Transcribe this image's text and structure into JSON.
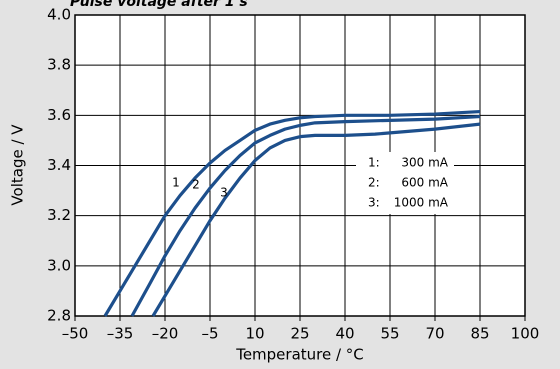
{
  "chart_data": {
    "type": "line",
    "title": "Pulse voltage after 1 s",
    "xlabel": "Temperature / °C",
    "ylabel": "Voltage / V",
    "xlim": [
      -50,
      100
    ],
    "xticks": [
      {
        "value": -50,
        "label": "–50"
      },
      {
        "value": -35,
        "label": "–35"
      },
      {
        "value": -20,
        "label": "–20"
      },
      {
        "value": -5,
        "label": "–5"
      },
      10,
      25,
      40,
      55,
      70,
      85,
      100
    ],
    "ylim": [
      2.8,
      4.0
    ],
    "yticks": [
      2.8,
      {
        "value": 3.0,
        "label": "3.0"
      },
      3.2,
      3.4,
      3.6,
      3.8,
      {
        "value": 4.0,
        "label": "4.0"
      }
    ],
    "grid": true,
    "series": [
      {
        "name": "300 mA",
        "key": "1:",
        "label": "1",
        "color": "#1d4f8c",
        "x": [
          -40,
          -35,
          -30,
          -25,
          -20,
          -15,
          -10,
          -5,
          0,
          5,
          10,
          15,
          20,
          25,
          30,
          40,
          55,
          70,
          85
        ],
        "values": [
          2.8,
          2.9,
          3.0,
          3.1,
          3.2,
          3.28,
          3.35,
          3.41,
          3.46,
          3.5,
          3.54,
          3.565,
          3.58,
          3.59,
          3.595,
          3.6,
          3.6,
          3.605,
          3.615
        ]
      },
      {
        "name": "600 mA",
        "key": "2:",
        "label": "2",
        "color": "#1d4f8c",
        "x": [
          -31,
          -25,
          -20,
          -15,
          -10,
          -5,
          0,
          5,
          10,
          15,
          20,
          25,
          30,
          40,
          55,
          70,
          85
        ],
        "values": [
          2.8,
          2.93,
          3.04,
          3.14,
          3.23,
          3.31,
          3.38,
          3.44,
          3.49,
          3.52,
          3.545,
          3.56,
          3.57,
          3.575,
          3.58,
          3.585,
          3.595
        ]
      },
      {
        "name": "1000 mA",
        "key": "3:",
        "label": "3",
        "color": "#1d4f8c",
        "x": [
          -24,
          -20,
          -15,
          -10,
          -5,
          0,
          5,
          10,
          15,
          20,
          25,
          30,
          40,
          50,
          60,
          70,
          85
        ],
        "values": [
          2.8,
          2.88,
          2.98,
          3.08,
          3.18,
          3.27,
          3.35,
          3.42,
          3.47,
          3.5,
          3.515,
          3.52,
          3.52,
          3.525,
          3.535,
          3.545,
          3.565
        ]
      }
    ]
  }
}
